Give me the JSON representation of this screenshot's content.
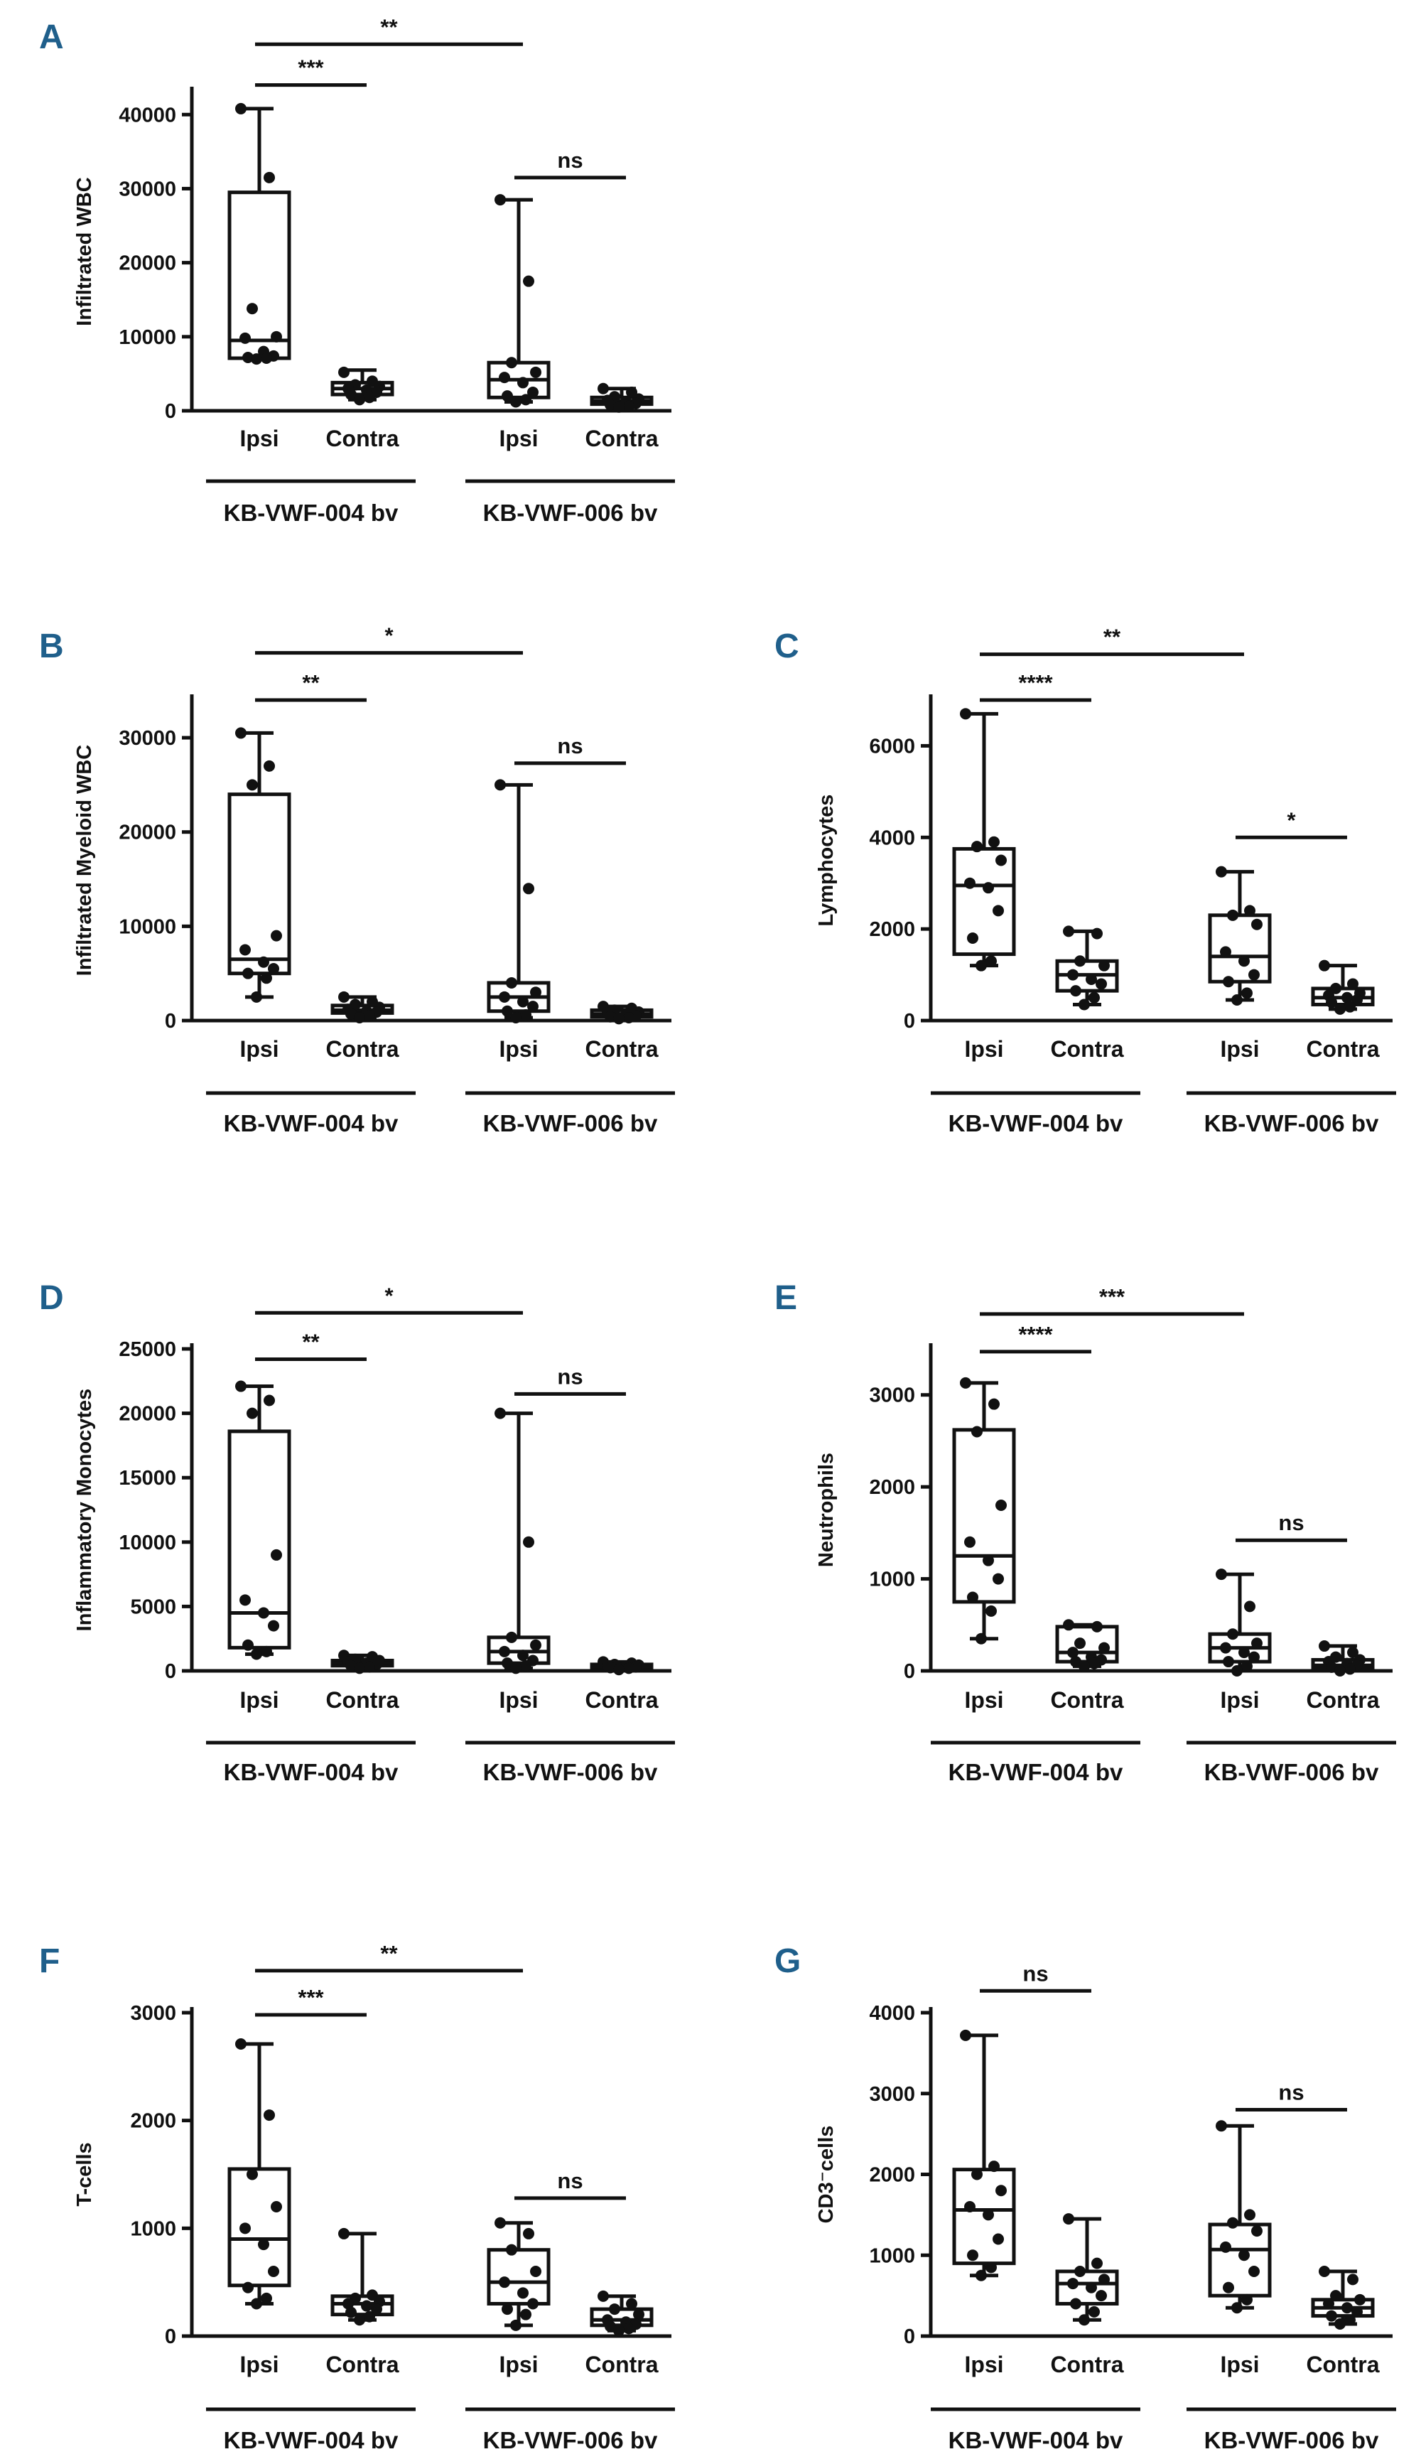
{
  "chart_data": [
    {
      "type": "box",
      "panel": "A",
      "ylabel": "Infiltrated WBC",
      "yticks": [
        0,
        10000,
        20000,
        30000,
        40000
      ],
      "ylim": [
        0,
        43000
      ],
      "categories": [
        "Ipsi",
        "Contra",
        "Ipsi",
        "Contra"
      ],
      "groups": [
        "KB-VWF-004 bv",
        "KB-VWF-006 bv"
      ],
      "boxes": [
        {
          "min": 7000,
          "q1": 7100,
          "median": 9500,
          "q3": 29500,
          "max": 40800,
          "points": [
            40800,
            31500,
            13800,
            10000,
            9800,
            8000,
            7400,
            7200,
            7100,
            7000
          ]
        },
        {
          "min": 1500,
          "q1": 2200,
          "median": 3000,
          "q3": 3800,
          "max": 5500,
          "points": [
            5200,
            4000,
            3500,
            3300,
            3000,
            2800,
            2500,
            2200,
            1800,
            1500
          ]
        },
        {
          "min": 1200,
          "q1": 1800,
          "median": 4200,
          "q3": 6500,
          "max": 28500,
          "points": [
            28500,
            17500,
            6500,
            5200,
            4500,
            3800,
            2500,
            2000,
            1500,
            1200
          ]
        },
        {
          "min": 500,
          "q1": 900,
          "median": 1300,
          "q3": 1800,
          "max": 3000,
          "points": [
            3000,
            2500,
            1900,
            1600,
            1400,
            1200,
            1000,
            800,
            600,
            500
          ]
        }
      ],
      "brackets": [
        {
          "from": 0,
          "to": 1,
          "label": "***",
          "value": 44000
        },
        {
          "from": 0,
          "to": 2,
          "label": "**",
          "value": 49500
        },
        {
          "from": 2,
          "to": 3,
          "label": "ns",
          "value": 31500
        }
      ]
    },
    {
      "type": "box",
      "panel": "B",
      "ylabel": "Infiltrated Myeloid WBC",
      "yticks": [
        0,
        10000,
        20000,
        30000
      ],
      "ylim": [
        0,
        34000
      ],
      "categories": [
        "Ipsi",
        "Contra",
        "Ipsi",
        "Contra"
      ],
      "groups": [
        "KB-VWF-004 bv",
        "KB-VWF-006 bv"
      ],
      "boxes": [
        {
          "min": 2500,
          "q1": 5000,
          "median": 6500,
          "q3": 24000,
          "max": 30500,
          "points": [
            30500,
            27000,
            25000,
            9000,
            7500,
            6200,
            5500,
            5000,
            4500,
            2500
          ]
        },
        {
          "min": 300,
          "q1": 800,
          "median": 1100,
          "q3": 1600,
          "max": 2500,
          "points": [
            2500,
            2000,
            1700,
            1400,
            1200,
            1000,
            900,
            700,
            500,
            300
          ]
        },
        {
          "min": 300,
          "q1": 1000,
          "median": 2500,
          "q3": 4000,
          "max": 25000,
          "points": [
            25000,
            14000,
            4000,
            3000,
            2500,
            2000,
            1500,
            1000,
            600,
            300
          ]
        },
        {
          "min": 200,
          "q1": 400,
          "median": 700,
          "q3": 1100,
          "max": 1500,
          "points": [
            1500,
            1300,
            1100,
            900,
            800,
            700,
            500,
            400,
            300,
            200
          ]
        }
      ],
      "brackets": [
        {
          "from": 0,
          "to": 1,
          "label": "**",
          "value": 34000
        },
        {
          "from": 0,
          "to": 2,
          "label": "*",
          "value": 39000
        },
        {
          "from": 2,
          "to": 3,
          "label": "ns",
          "value": 27300
        }
      ]
    },
    {
      "type": "box",
      "panel": "C",
      "ylabel": "Lymphocytes",
      "yticks": [
        0,
        2000,
        4000,
        6000
      ],
      "ylim": [
        0,
        7000
      ],
      "categories": [
        "Ipsi",
        "Contra",
        "Ipsi",
        "Contra"
      ],
      "groups": [
        "KB-VWF-004 bv",
        "KB-VWF-006 bv"
      ],
      "boxes": [
        {
          "min": 1200,
          "q1": 1450,
          "median": 2950,
          "q3": 3750,
          "max": 6700,
          "points": [
            6700,
            3900,
            3800,
            3500,
            3000,
            2900,
            2400,
            1800,
            1300,
            1200
          ]
        },
        {
          "min": 350,
          "q1": 650,
          "median": 1000,
          "q3": 1300,
          "max": 1950,
          "points": [
            1950,
            1900,
            1300,
            1200,
            1000,
            900,
            800,
            650,
            500,
            350
          ]
        },
        {
          "min": 450,
          "q1": 850,
          "median": 1400,
          "q3": 2300,
          "max": 3250,
          "points": [
            3250,
            2400,
            2300,
            2100,
            1500,
            1300,
            1000,
            850,
            600,
            450
          ]
        },
        {
          "min": 250,
          "q1": 350,
          "median": 500,
          "q3": 700,
          "max": 1200,
          "points": [
            1200,
            800,
            700,
            600,
            550,
            500,
            450,
            400,
            300,
            250
          ]
        }
      ],
      "brackets": [
        {
          "from": 0,
          "to": 1,
          "label": "****",
          "value": 7000
        },
        {
          "from": 0,
          "to": 2,
          "label": "**",
          "value": 8000
        },
        {
          "from": 2,
          "to": 3,
          "label": "*",
          "value": 4000
        }
      ]
    },
    {
      "type": "box",
      "panel": "D",
      "ylabel": "Inflammatory Monocytes",
      "yticks": [
        0,
        5000,
        10000,
        15000,
        20000,
        25000
      ],
      "ylim": [
        0,
        25000
      ],
      "categories": [
        "Ipsi",
        "Contra",
        "Ipsi",
        "Contra"
      ],
      "groups": [
        "KB-VWF-004 bv",
        "KB-VWF-006 bv"
      ],
      "boxes": [
        {
          "min": 1300,
          "q1": 1800,
          "median": 4500,
          "q3": 18600,
          "max": 22100,
          "points": [
            22100,
            21000,
            20000,
            9000,
            5500,
            4500,
            3500,
            2000,
            1500,
            1300
          ]
        },
        {
          "min": 200,
          "q1": 400,
          "median": 600,
          "q3": 800,
          "max": 1200,
          "points": [
            1200,
            1100,
            900,
            800,
            700,
            600,
            500,
            400,
            300,
            200
          ]
        },
        {
          "min": 200,
          "q1": 600,
          "median": 1500,
          "q3": 2600,
          "max": 20000,
          "points": [
            20000,
            10000,
            2600,
            2000,
            1500,
            1200,
            800,
            600,
            400,
            200
          ]
        },
        {
          "min": 100,
          "q1": 200,
          "median": 350,
          "q3": 500,
          "max": 700,
          "points": [
            700,
            600,
            500,
            450,
            400,
            350,
            300,
            250,
            200,
            100
          ]
        }
      ],
      "brackets": [
        {
          "from": 0,
          "to": 1,
          "label": "**",
          "value": 24200
        },
        {
          "from": 0,
          "to": 2,
          "label": "*",
          "value": 27800
        },
        {
          "from": 2,
          "to": 3,
          "label": "ns",
          "value": 21500
        }
      ]
    },
    {
      "type": "box",
      "panel": "E",
      "ylabel": "Neutrophils",
      "yticks": [
        0,
        1000,
        2000,
        3000
      ],
      "ylim": [
        0,
        3500
      ],
      "categories": [
        "Ipsi",
        "Contra",
        "Ipsi",
        "Contra"
      ],
      "groups": [
        "KB-VWF-004 bv",
        "KB-VWF-006 bv"
      ],
      "boxes": [
        {
          "min": 350,
          "q1": 750,
          "median": 1250,
          "q3": 2620,
          "max": 3130,
          "points": [
            3130,
            2900,
            2600,
            1800,
            1400,
            1200,
            1000,
            800,
            650,
            350
          ]
        },
        {
          "min": 50,
          "q1": 100,
          "median": 200,
          "q3": 480,
          "max": 500,
          "points": [
            500,
            480,
            300,
            250,
            200,
            150,
            120,
            100,
            80,
            50
          ]
        },
        {
          "min": 0,
          "q1": 100,
          "median": 250,
          "q3": 400,
          "max": 1050,
          "points": [
            1050,
            700,
            400,
            300,
            250,
            200,
            150,
            100,
            50,
            0
          ]
        },
        {
          "min": 0,
          "q1": 30,
          "median": 60,
          "q3": 120,
          "max": 270,
          "points": [
            270,
            200,
            150,
            120,
            100,
            80,
            60,
            40,
            20,
            0
          ]
        }
      ],
      "brackets": [
        {
          "from": 0,
          "to": 1,
          "label": "****",
          "value": 3470
        },
        {
          "from": 0,
          "to": 2,
          "label": "***",
          "value": 3880
        },
        {
          "from": 2,
          "to": 3,
          "label": "ns",
          "value": 1420
        }
      ]
    },
    {
      "type": "box",
      "panel": "F",
      "ylabel": "T-cells",
      "yticks": [
        0,
        1000,
        2000,
        3000
      ],
      "ylim": [
        0,
        3000
      ],
      "categories": [
        "Ipsi",
        "Contra",
        "Ipsi",
        "Contra"
      ],
      "groups": [
        "KB-VWF-004 bv",
        "KB-VWF-006 bv"
      ],
      "boxes": [
        {
          "min": 300,
          "q1": 470,
          "median": 900,
          "q3": 1550,
          "max": 2710,
          "points": [
            2710,
            2050,
            1500,
            1200,
            1000,
            850,
            600,
            450,
            350,
            300
          ]
        },
        {
          "min": 150,
          "q1": 200,
          "median": 300,
          "q3": 370,
          "max": 950,
          "points": [
            950,
            380,
            350,
            320,
            300,
            280,
            250,
            220,
            180,
            150
          ]
        },
        {
          "min": 100,
          "q1": 300,
          "median": 500,
          "q3": 800,
          "max": 1050,
          "points": [
            1050,
            950,
            800,
            600,
            500,
            400,
            300,
            250,
            200,
            100
          ]
        },
        {
          "min": 50,
          "q1": 100,
          "median": 150,
          "q3": 250,
          "max": 370,
          "points": [
            370,
            300,
            250,
            200,
            150,
            130,
            110,
            90,
            70,
            50
          ]
        }
      ],
      "brackets": [
        {
          "from": 0,
          "to": 1,
          "label": "***",
          "value": 2980
        },
        {
          "from": 0,
          "to": 2,
          "label": "**",
          "value": 3390
        },
        {
          "from": 2,
          "to": 3,
          "label": "ns",
          "value": 1280
        }
      ]
    },
    {
      "type": "box",
      "panel": "G",
      "ylabel": "CD3⁻cells",
      "yticks": [
        0,
        1000,
        2000,
        3000,
        4000
      ],
      "ylim": [
        0,
        4000
      ],
      "categories": [
        "Ipsi",
        "Contra",
        "Ipsi",
        "Contra"
      ],
      "groups": [
        "KB-VWF-004 bv",
        "KB-VWF-006 bv"
      ],
      "boxes": [
        {
          "min": 750,
          "q1": 900,
          "median": 1560,
          "q3": 2060,
          "max": 3720,
          "points": [
            3720,
            2100,
            2000,
            1800,
            1600,
            1500,
            1200,
            1000,
            850,
            750
          ]
        },
        {
          "min": 200,
          "q1": 400,
          "median": 650,
          "q3": 800,
          "max": 1450,
          "points": [
            1450,
            900,
            800,
            700,
            650,
            600,
            500,
            400,
            300,
            200
          ]
        },
        {
          "min": 350,
          "q1": 500,
          "median": 1070,
          "q3": 1380,
          "max": 2600,
          "points": [
            2600,
            1500,
            1400,
            1300,
            1100,
            1000,
            800,
            600,
            450,
            350
          ]
        },
        {
          "min": 150,
          "q1": 250,
          "median": 350,
          "q3": 450,
          "max": 800,
          "points": [
            800,
            700,
            500,
            450,
            400,
            350,
            300,
            250,
            200,
            150
          ]
        }
      ],
      "brackets": [
        {
          "from": 0,
          "to": 1,
          "label": "ns",
          "value": 4270
        },
        {
          "from": 2,
          "to": 3,
          "label": "ns",
          "value": 2800
        }
      ]
    }
  ]
}
